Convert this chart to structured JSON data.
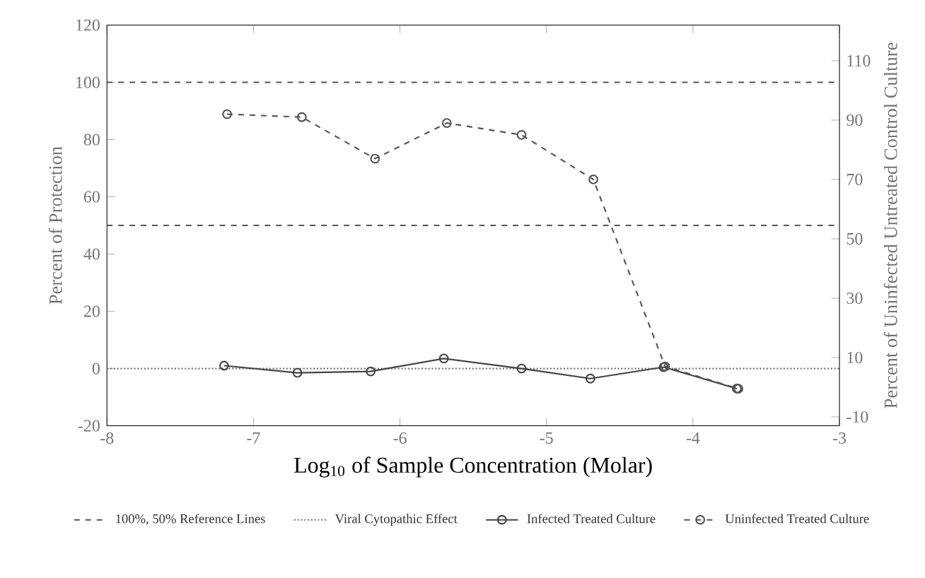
{
  "chart_data": {
    "type": "line",
    "xlabel": "Log$_{10}$ of Sample Concentration (Molar)",
    "ylabel": "Percent of Protection",
    "y2label": "Percent of Uninfected Untreated Control Culture",
    "xlim": [
      -8,
      -3
    ],
    "xticks": [
      -8,
      -7,
      -6,
      -5,
      -4,
      -3
    ],
    "ylim": [
      -20,
      120
    ],
    "yticks": [
      -20,
      0,
      20,
      40,
      60,
      80,
      100,
      120
    ],
    "y2lim": [
      -13,
      122
    ],
    "y2ticks": [
      -10,
      10,
      30,
      50,
      70,
      90,
      110
    ],
    "ref_lines": [
      {
        "axis": "y",
        "value": 100,
        "label": "100%, 50% Reference Lines",
        "line_style": "dashed",
        "color": "#555555"
      },
      {
        "axis": "y",
        "value": 50,
        "label": null,
        "line_style": "dashed",
        "color": "#555555"
      },
      {
        "axis": "y",
        "value": 0,
        "label": "Viral Cytopathic Effect",
        "line_style": "dotted",
        "color": "#777777"
      }
    ],
    "marker": "circle",
    "legend": "bottom",
    "grid": false,
    "series": [
      {
        "name": "Infected Treated Culture",
        "color": "#444444",
        "line_style": "solid",
        "axis": "y",
        "x": [
          -7.2,
          -6.7,
          -6.2,
          -5.7,
          -5.17,
          -4.7,
          -4.2,
          -3.7
        ],
        "values": [
          1,
          -1.5,
          -1,
          3.5,
          0,
          -3.5,
          0.5,
          -7
        ]
      },
      {
        "name": "Uninfected Treated Culture",
        "color": "#555555",
        "line_style": "dashed",
        "axis": "y2",
        "x": [
          -7.18,
          -6.67,
          -6.17,
          -5.68,
          -5.17,
          -4.68,
          -4.19,
          -3.69
        ],
        "values": [
          92,
          91,
          77,
          89,
          85,
          70,
          7,
          -0.5
        ]
      }
    ]
  }
}
